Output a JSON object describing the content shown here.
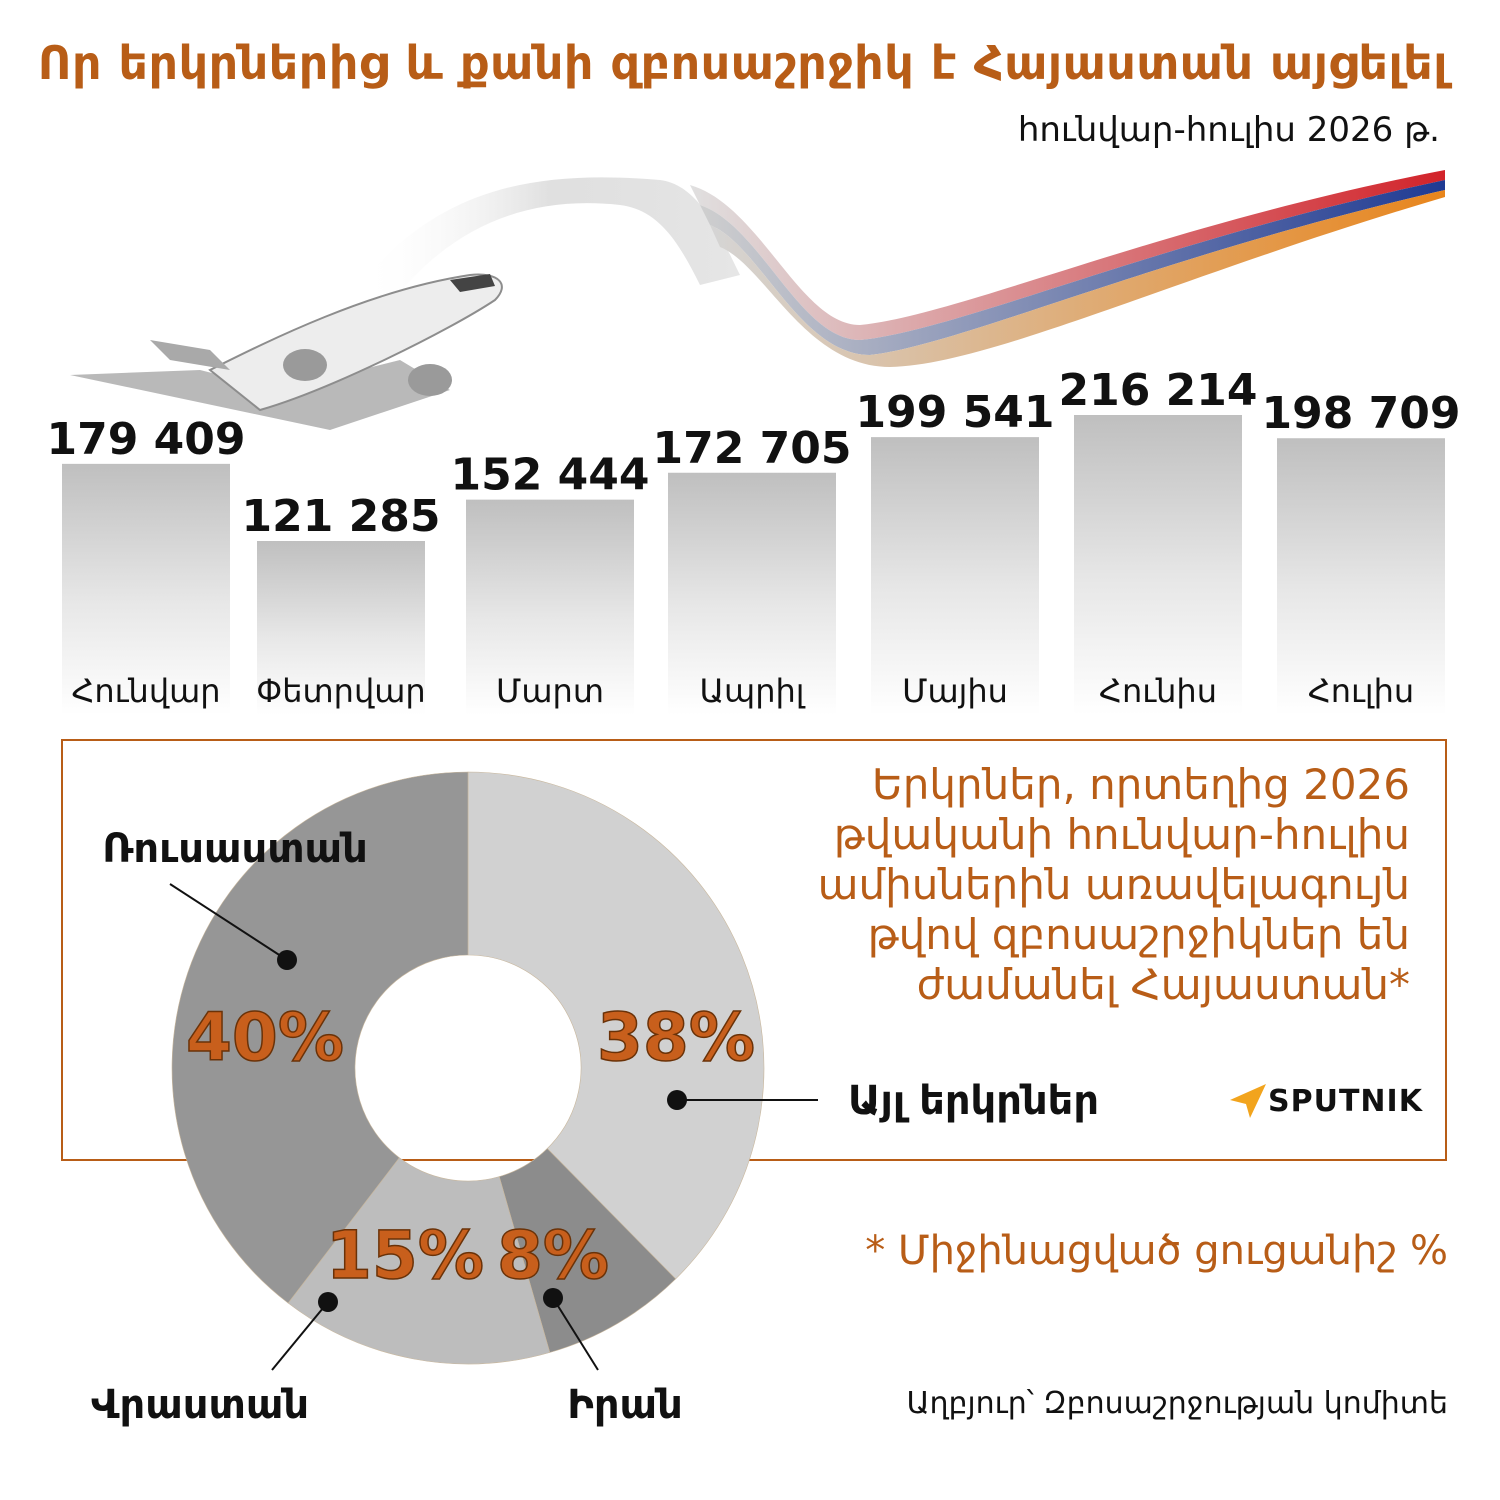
{
  "header": {
    "title": "Որ երկրներից և քանի զբոսաշրջիկ է Հայաստան այցելել",
    "subtitle": "հունվար-հուլիս 2026 թ."
  },
  "colors": {
    "accent": "#b85d17",
    "flag_red": "#d2232a",
    "flag_blue": "#1f3a93",
    "flag_orange": "#f2a81d"
  },
  "chart_data": [
    {
      "type": "bar",
      "categories": [
        "Հունվար",
        "Փետրվար",
        "Մարտ",
        "Ապրիլ",
        "Մայիս",
        "Հունիս",
        "Հուլիս"
      ],
      "values": [
        179409,
        121285,
        152444,
        172705,
        199541,
        216214,
        198709
      ],
      "value_labels": [
        "179 409",
        "121 285",
        "152 444",
        "172 705",
        "199 541",
        "216 214",
        "198 709"
      ],
      "ylim": [
        0,
        216214
      ],
      "grid": false
    },
    {
      "type": "pie",
      "donut": true,
      "labels": [
        "Այլ երկրներ",
        "Իրան",
        "Վրաստան",
        "Ռուսաստան"
      ],
      "values": [
        38,
        8,
        15,
        40
      ],
      "value_labels": [
        "38%",
        "8%",
        "15%",
        "40%"
      ],
      "colors": [
        "#d1d1d1",
        "#8c8c8c",
        "#bdbdbd",
        "#969696"
      ]
    }
  ],
  "info": {
    "text": "Երկրներ, որտեղից 2026 թվականի հունվար-հուլիս ամիսներին առավելագույն թվով զբոսաշրջիկներ են ժամանել Հայաստան*"
  },
  "brand": {
    "name": "SPUTNIK",
    "icon": "sputnik-logo-icon"
  },
  "footnote": "* Միջինացված ցուցանիշ %",
  "source": "Աղբյուր՝ Զբոսաշրջության կոմիտե",
  "illustration": {
    "icon": "airplane-with-armenian-flag-ribbon"
  }
}
